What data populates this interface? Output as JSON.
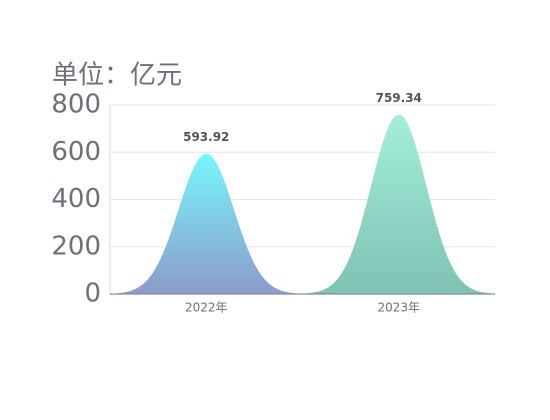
{
  "chart_data": {
    "type": "bar",
    "shape": "bell",
    "y_axis_label": "单位：亿元",
    "categories": [
      "2022年",
      "2023年"
    ],
    "values": [
      593.92,
      759.34
    ],
    "colors": [
      [
        "#78f6fc",
        "#8c9bcb"
      ],
      [
        "#a3efda",
        "#7fc2b4"
      ]
    ],
    "ylim": [
      0,
      800
    ],
    "yticks": [
      0,
      200,
      400,
      600,
      800
    ],
    "grid": true
  }
}
